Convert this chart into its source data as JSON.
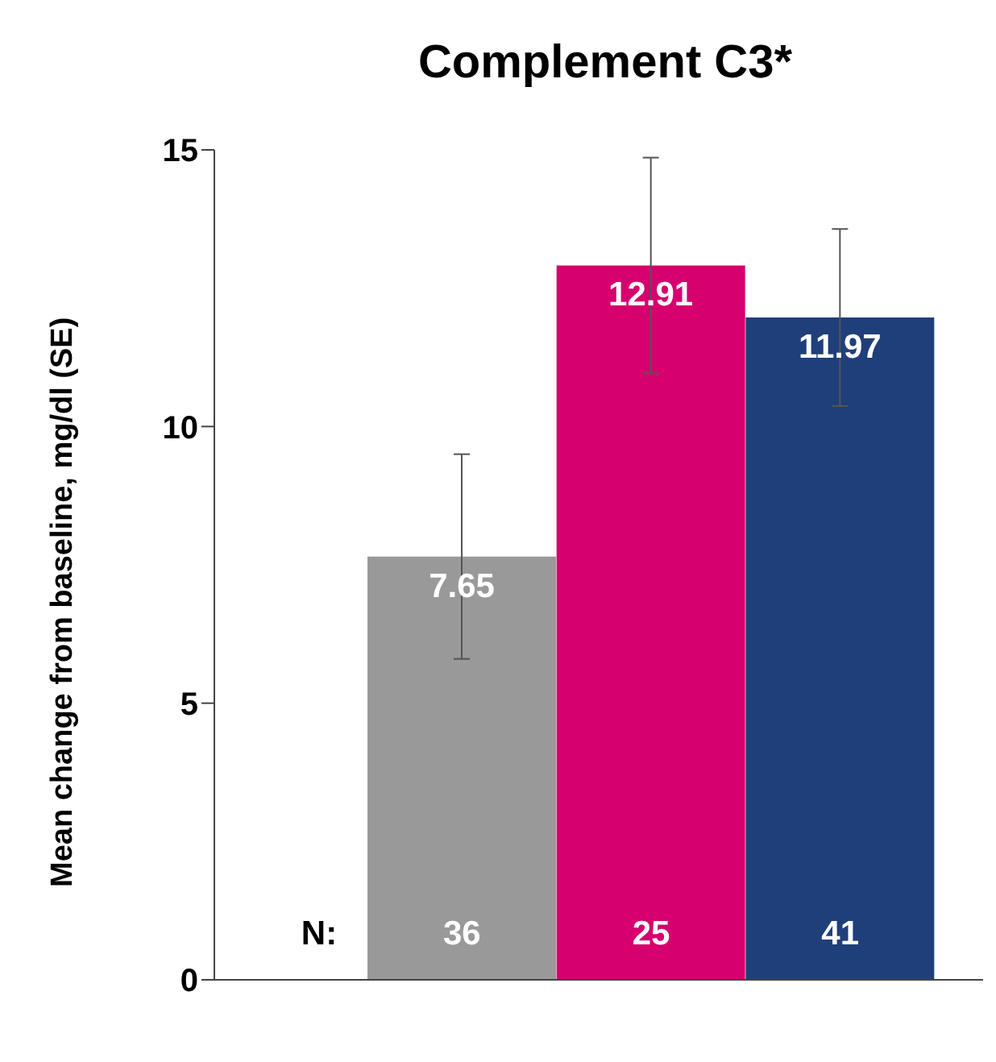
{
  "chart_data": {
    "type": "bar",
    "title": "Complement C3*",
    "ylabel": "Mean change from baseline, mg/dl (SE)",
    "categories": [
      null,
      null,
      null
    ],
    "values": [
      7.65,
      12.91,
      11.97
    ],
    "colors": [
      "#999999",
      "#d6006e",
      "#1f3f7a"
    ],
    "errors": [
      1.85,
      1.95,
      1.6
    ],
    "ylim": [
      0,
      15
    ],
    "yticks": [
      0,
      5,
      10,
      15
    ],
    "grid": false,
    "legend": false,
    "data_labels": true,
    "annotations": [
      "N:",
      "36",
      "25",
      "41"
    ]
  }
}
